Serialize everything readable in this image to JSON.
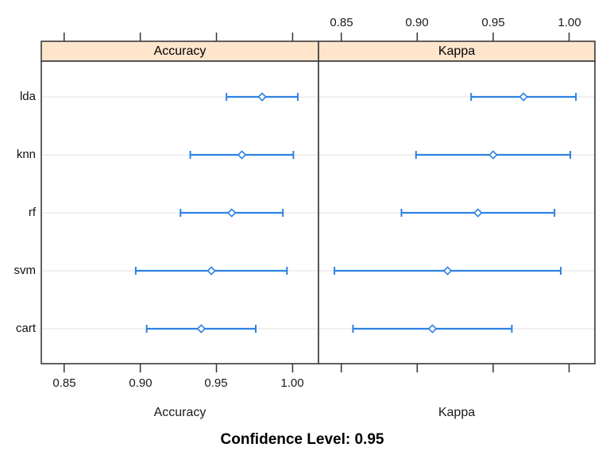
{
  "figure": {
    "footer": "Confidence Level: 0.95"
  },
  "chart_data": {
    "type": "dotplot",
    "subtype": "confidence-interval-dotplot",
    "title": "",
    "footer": "Confidence Level: 0.95",
    "categories": [
      "lda",
      "knn",
      "rf",
      "svm",
      "cart"
    ],
    "category_axis": "y",
    "xlim": [
      0.835,
      1.017
    ],
    "x_ticks": [
      0.85,
      0.9,
      0.95,
      1.0
    ],
    "x_tick_labels": [
      "0.85",
      "0.90",
      "0.95",
      "1.00"
    ],
    "grid": "horizontal-only",
    "legend": "none",
    "marker": "open-diamond",
    "panels": [
      {
        "label": "Accuracy",
        "xlabel": "Accuracy",
        "tick_labels_shown": "bottom",
        "series": [
          {
            "model": "lda",
            "lower": 0.9566,
            "mid": 0.98,
            "upper": 1.0034
          },
          {
            "model": "knn",
            "lower": 0.9328,
            "mid": 0.9667,
            "upper": 1.0005
          },
          {
            "model": "rf",
            "lower": 0.9264,
            "mid": 0.96,
            "upper": 0.9936
          },
          {
            "model": "svm",
            "lower": 0.897,
            "mid": 0.9467,
            "upper": 0.9963
          },
          {
            "model": "cart",
            "lower": 0.9042,
            "mid": 0.94,
            "upper": 0.9758
          }
        ]
      },
      {
        "label": "Kappa",
        "xlabel": "Kappa",
        "tick_labels_shown": "top",
        "series": [
          {
            "model": "lda",
            "lower": 0.9355,
            "mid": 0.97,
            "upper": 1.0045
          },
          {
            "model": "knn",
            "lower": 0.8992,
            "mid": 0.95,
            "upper": 1.0008
          },
          {
            "model": "rf",
            "lower": 0.8896,
            "mid": 0.94,
            "upper": 0.9904
          },
          {
            "model": "svm",
            "lower": 0.8455,
            "mid": 0.92,
            "upper": 0.9945
          },
          {
            "model": "cart",
            "lower": 0.8577,
            "mid": 0.91,
            "upper": 0.9623
          }
        ]
      }
    ],
    "colors": {
      "interval": "#2F82E2",
      "marker_fill": "#ffffff",
      "strip_fill": "#FFE5CC",
      "strip_border": "#3A3A3A",
      "panel_border": "#3A3A3A",
      "grid": "#EBEBEB",
      "tick": "#333333",
      "text": "#000000",
      "background": "#ffffff"
    }
  }
}
